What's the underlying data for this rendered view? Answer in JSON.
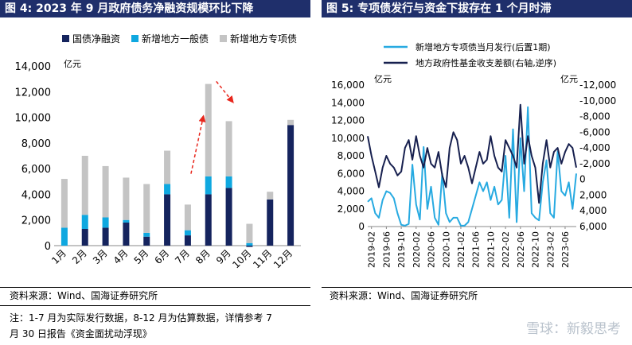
{
  "left_title": "图 4:  2023 年 9 月政府债务净融资规模环比下降",
  "right_title": "图 5:  专项债发行与资金下拔存在 1 个月时滞",
  "left_source": "资料来源：Wind、国海证券研究所",
  "right_source": "资料来源：Wind、国海证券研究所",
  "note_line1": "注：1-7 月为实际发行数据，8-12 月为估算数据，详情参考 7",
  "note_line2": "月 30 日报告《资金面扰动浮现》",
  "watermark": "雪球：新毅思考",
  "colors": {
    "title_bg": "#1f2f6b",
    "navy": "#15245e",
    "cyan": "#0fa8e0",
    "gray": "#c4c4c4",
    "arrow": "#e8261c",
    "line_light": "#27aae1",
    "line_dark": "#17204f"
  },
  "chart_data": [
    {
      "type": "bar",
      "stacked": true,
      "unit_label": "亿元",
      "categories": [
        "1月",
        "2月",
        "3月",
        "4月",
        "5月",
        "6月",
        "7月",
        "8月",
        "9月",
        "10月",
        "11月",
        "12月"
      ],
      "series": [
        {
          "name": "国债净融资",
          "color": "#15245e",
          "values": [
            0,
            1300,
            1400,
            1800,
            700,
            4000,
            800,
            4000,
            4500,
            -100,
            3600,
            9400
          ]
        },
        {
          "name": "新增地方一般债",
          "color": "#0fa8e0",
          "values": [
            1400,
            1100,
            800,
            200,
            300,
            800,
            400,
            1400,
            900,
            200,
            0,
            0
          ]
        },
        {
          "name": "新增地方专项债",
          "color": "#c4c4c4",
          "values": [
            3800,
            4600,
            4000,
            3300,
            3800,
            2600,
            2000,
            7200,
            4300,
            1500,
            600,
            400
          ]
        }
      ],
      "ylim": [
        0,
        14000
      ],
      "yticks": [
        "0",
        "2,000",
        "4,000",
        "6,000",
        "8,000",
        "10,000",
        "12,000",
        "14,000"
      ],
      "legend": "top",
      "grid": false
    },
    {
      "type": "line",
      "legend": "top",
      "grid": false,
      "left_unit": "亿元",
      "right_unit": "亿元",
      "xticks": [
        "2019-02",
        "2019-06",
        "2019-10",
        "2020-02",
        "2020-06",
        "2020-10",
        "2021-02",
        "2021-06",
        "2021-10",
        "2022-02",
        "2022-06",
        "2022-10",
        "2023-02",
        "2023-06"
      ],
      "x_range": [
        "2019-01",
        "2023-09"
      ],
      "left_axis": {
        "ylim": [
          0,
          16000
        ],
        "ticks": [
          "0",
          "2,000",
          "4,000",
          "6,000",
          "8,000",
          "10,000",
          "12,000",
          "14,000",
          "16,000"
        ]
      },
      "right_axis": {
        "reversed": true,
        "ylim": [
          -12000,
          6000
        ],
        "ticks": [
          "-12,000",
          "-10,000",
          "-8,000",
          "-6,000",
          "-4,000",
          "-2,000",
          "0",
          "2,000",
          "4,000",
          "6,000"
        ]
      },
      "series": [
        {
          "name": "新增地方专项债当月发行(后置1期)",
          "axis": "left",
          "color": "#27aae1",
          "x": [
            "2019-01",
            "2019-02",
            "2019-03",
            "2019-04",
            "2019-05",
            "2019-06",
            "2019-07",
            "2019-08",
            "2019-09",
            "2019-10",
            "2019-11",
            "2019-12",
            "2020-01",
            "2020-02",
            "2020-03",
            "2020-04",
            "2020-05",
            "2020-06",
            "2020-07",
            "2020-08",
            "2020-09",
            "2020-10",
            "2020-11",
            "2020-12",
            "2021-01",
            "2021-02",
            "2021-03",
            "2021-04",
            "2021-05",
            "2021-06",
            "2021-07",
            "2021-08",
            "2021-09",
            "2021-10",
            "2021-11",
            "2021-12",
            "2022-01",
            "2022-02",
            "2022-03",
            "2022-04",
            "2022-05",
            "2022-06",
            "2022-07",
            "2022-08",
            "2022-09",
            "2022-10",
            "2022-11",
            "2022-12",
            "2023-01",
            "2023-02",
            "2023-03",
            "2023-04",
            "2023-05",
            "2023-06",
            "2023-07",
            "2023-08",
            "2023-09"
          ],
          "values": [
            2800,
            3200,
            1500,
            1000,
            3000,
            4000,
            3800,
            3200,
            1500,
            200,
            100,
            300,
            7000,
            2500,
            800,
            9000,
            2000,
            4500,
            1000,
            200,
            6000,
            1500,
            500,
            1000,
            1000,
            100,
            100,
            500,
            2000,
            3500,
            5000,
            4000,
            5000,
            3000,
            4500,
            2500,
            3000,
            8000,
            1000,
            11000,
            500,
            10000,
            4000,
            13500,
            1500,
            1000,
            700,
            5000,
            7500,
            1500,
            1000,
            8500,
            4000,
            3500,
            5000,
            2000,
            6000
          ]
        },
        {
          "name": "地方政府性基金收支差额(右轴,逆序)",
          "axis": "right",
          "color": "#17204f",
          "x": [
            "2019-01",
            "2019-02",
            "2019-03",
            "2019-04",
            "2019-05",
            "2019-06",
            "2019-07",
            "2019-08",
            "2019-09",
            "2019-10",
            "2019-11",
            "2019-12",
            "2020-01",
            "2020-02",
            "2020-03",
            "2020-04",
            "2020-05",
            "2020-06",
            "2020-07",
            "2020-08",
            "2020-09",
            "2020-10",
            "2020-11",
            "2020-12",
            "2021-01",
            "2021-02",
            "2021-03",
            "2021-04",
            "2021-05",
            "2021-06",
            "2021-07",
            "2021-08",
            "2021-09",
            "2021-10",
            "2021-11",
            "2021-12",
            "2022-01",
            "2022-02",
            "2022-03",
            "2022-04",
            "2022-05",
            "2022-06",
            "2022-07",
            "2022-08",
            "2022-09",
            "2022-10",
            "2022-11",
            "2022-12",
            "2023-01",
            "2023-02",
            "2023-03",
            "2023-04",
            "2023-05",
            "2023-06",
            "2023-07",
            "2023-08",
            "2023-09"
          ],
          "values": [
            -5500,
            -3000,
            -1000,
            1000,
            -1500,
            -3000,
            -2000,
            -1500,
            -500,
            -1000,
            -4000,
            -5000,
            -2500,
            -5500,
            -3000,
            -1500,
            -4000,
            -2000,
            -1500,
            -3500,
            -500,
            1000,
            -4000,
            -6000,
            -5000,
            -2000,
            -3000,
            -1500,
            500,
            -1500,
            -3500,
            -2000,
            -2500,
            -5500,
            -3000,
            -1500,
            -1000,
            -5000,
            -4000,
            -3000,
            -1500,
            -9500,
            -2000,
            -5500,
            -3000,
            -1500,
            3000,
            -2000,
            -5000,
            -1500,
            -3500,
            -4000,
            -2000,
            -3500,
            -4500,
            -4000,
            -1500
          ]
        }
      ]
    }
  ]
}
